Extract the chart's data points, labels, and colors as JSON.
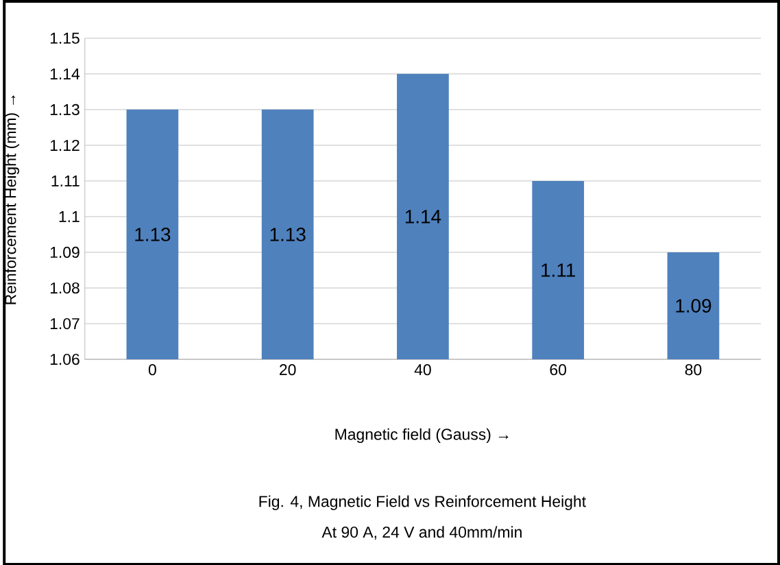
{
  "chart_data": {
    "type": "bar",
    "xlabel": "Magnetic field (Gauss) →",
    "ylabel": "Reinforcement Height (mm) →",
    "categories": [
      "0",
      "20",
      "40",
      "60",
      "80"
    ],
    "values": [
      1.13,
      1.13,
      1.14,
      1.11,
      1.09
    ],
    "color": "#4f81bd",
    "ylim": [
      1.06,
      1.15
    ],
    "yticks": [
      1.06,
      1.07,
      1.08,
      1.09,
      1.1,
      1.11,
      1.12,
      1.13,
      1.14,
      1.15
    ],
    "grid": "y",
    "data_labels": true,
    "annotations": [
      "Fig. 4, Magnetic Field vs Reinforcement Height",
      "At 90 A, 24 V and 40mm/min"
    ]
  }
}
